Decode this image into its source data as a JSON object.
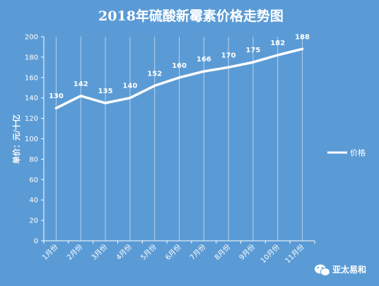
{
  "chart_data": {
    "type": "line",
    "title": "2018年硫酸新霉素价格走势图",
    "ylabel": "单价：元/十亿",
    "xlabel": "",
    "ylim": [
      0,
      200
    ],
    "ytick_step": 20,
    "categories": [
      "1月份",
      "2月份",
      "3月份",
      "4月份",
      "5月份",
      "6月份",
      "7月份",
      "8月份",
      "9月份",
      "10月份",
      "11月份"
    ],
    "series": [
      {
        "name": "价格",
        "values": [
          130,
          142,
          135,
          140,
          152,
          160,
          166,
          170,
          175,
          182,
          188
        ]
      }
    ],
    "grid": "vertical",
    "legend": "right",
    "line_color": "#ffffff",
    "background_color": "#5b9bd5"
  },
  "watermark": {
    "text": "亚太易和",
    "icon": "wechat-icon"
  }
}
